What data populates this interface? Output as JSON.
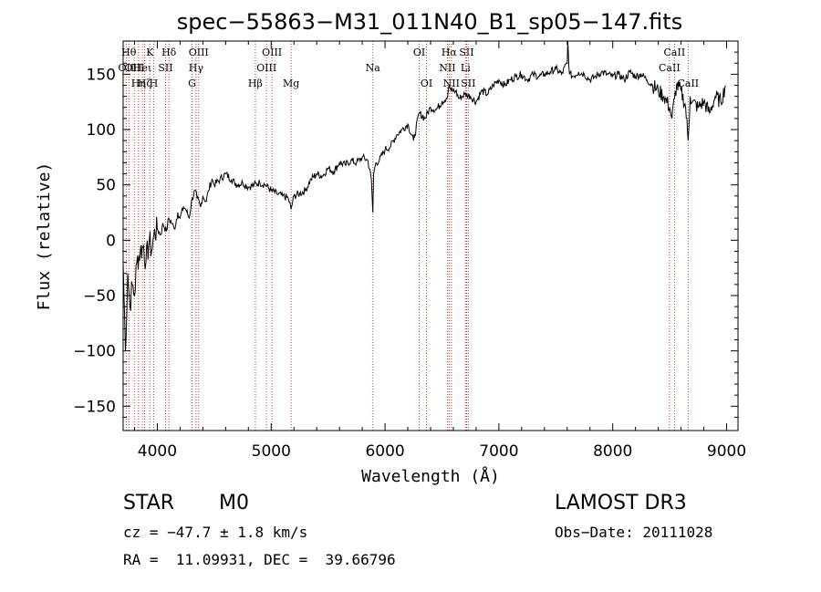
{
  "chart_data": {
    "type": "line",
    "title": "spec−55863−M31_011N40_B1_sp05−147.fits",
    "xlabel": "Wavelength (Å)",
    "ylabel": "Flux (relative)",
    "xlim": [
      3700,
      9100
    ],
    "ylim": [
      -172,
      180
    ],
    "x_ticks": [
      4000,
      5000,
      6000,
      7000,
      8000,
      9000
    ],
    "x_tick_labels": [
      "4000",
      "5000",
      "6000",
      "7000",
      "8000",
      "9000"
    ],
    "y_ticks": [
      -150,
      -100,
      -50,
      0,
      50,
      100,
      150
    ],
    "y_tick_labels": [
      "−150",
      "−100",
      "−50",
      "0",
      "50",
      "100",
      "150"
    ],
    "grid": false,
    "series": [
      {
        "x": [
          3700,
          3720,
          3740,
          3760,
          3780,
          3800,
          3820,
          3850,
          3880,
          3900,
          3930,
          3950,
          3970,
          4000,
          4030,
          4050,
          4080,
          4100,
          4130,
          4150,
          4180,
          4200,
          4230,
          4250,
          4280,
          4300,
          4330,
          4350,
          4380,
          4400,
          4430,
          4450,
          4480,
          4500,
          4550,
          4600,
          4650,
          4700,
          4750,
          4800,
          4850,
          4900,
          4950,
          5000,
          5050,
          5100,
          5150,
          5175,
          5200,
          5250,
          5300,
          5350,
          5400,
          5450,
          5500,
          5550,
          5600,
          5650,
          5700,
          5750,
          5800,
          5850,
          5880,
          5893,
          5900,
          5920,
          5950,
          6000,
          6050,
          6100,
          6150,
          6200,
          6250,
          6300,
          6350,
          6400,
          6450,
          6500,
          6550,
          6563,
          6580,
          6620,
          6650,
          6700,
          6750,
          6800,
          6850,
          6900,
          6950,
          7000,
          7050,
          7100,
          7150,
          7200,
          7250,
          7300,
          7350,
          7400,
          7450,
          7500,
          7550,
          7600,
          7605,
          7620,
          7650,
          7700,
          7750,
          7800,
          7850,
          7900,
          7950,
          8000,
          8050,
          8100,
          8150,
          8200,
          8250,
          8300,
          8350,
          8400,
          8450,
          8500,
          8520,
          8542,
          8560,
          8600,
          8640,
          8662,
          8680,
          8700,
          8750,
          8800,
          8850,
          8900,
          8950,
          8990
        ],
        "y": [
          -20,
          -100,
          -30,
          -60,
          -40,
          -50,
          -20,
          -10,
          -5,
          -20,
          0,
          -10,
          5,
          10,
          5,
          15,
          8,
          20,
          15,
          10,
          25,
          20,
          30,
          28,
          20,
          35,
          45,
          38,
          30,
          40,
          35,
          45,
          55,
          50,
          55,
          60,
          55,
          50,
          52,
          48,
          50,
          52,
          50,
          45,
          42,
          40,
          38,
          28,
          40,
          42,
          45,
          55,
          60,
          58,
          65,
          62,
          70,
          68,
          72,
          70,
          75,
          72,
          55,
          25,
          60,
          70,
          72,
          82,
          85,
          95,
          100,
          105,
          90,
          115,
          110,
          120,
          118,
          125,
          130,
          140,
          135,
          135,
          128,
          132,
          130,
          125,
          135,
          132,
          140,
          145,
          140,
          145,
          148,
          150,
          145,
          150,
          148,
          150,
          152,
          155,
          150,
          160,
          180,
          150,
          148,
          152,
          150,
          145,
          148,
          152,
          150,
          148,
          150,
          145,
          152,
          148,
          150,
          145,
          140,
          135,
          130,
          120,
          110,
          128,
          140,
          135,
          120,
          90,
          130,
          125,
          120,
          125,
          115,
          130,
          125,
          140
        ]
      }
    ],
    "emission_lines": [
      {
        "wave": 3727,
        "label": "OII",
        "row": 2
      },
      {
        "wave": 3750,
        "label": "Hθ",
        "row": 1
      },
      {
        "wave": 3798,
        "label": "OIII",
        "row": 2
      },
      {
        "wave": 3835,
        "label": "Hη",
        "row": 3
      },
      {
        "wave": 3869,
        "label": "Heι",
        "row": 2
      },
      {
        "wave": 3889,
        "label": "Hζ",
        "row": 3
      },
      {
        "wave": 3934,
        "label": "K",
        "row": 1
      },
      {
        "wave": 3968,
        "label": "H",
        "row": 3
      },
      {
        "wave": 4072,
        "label": "SII",
        "row": 2
      },
      {
        "wave": 4102,
        "label": "Hδ",
        "row": 1
      },
      {
        "wave": 4305,
        "label": "G",
        "row": 3
      },
      {
        "wave": 4340,
        "label": "Hγ",
        "row": 2
      },
      {
        "wave": 4363,
        "label": "OIII",
        "row": 1
      },
      {
        "wave": 4861,
        "label": "Hβ",
        "row": 3
      },
      {
        "wave": 4959,
        "label": "OIII",
        "row": 2
      },
      {
        "wave": 5007,
        "label": "OIII",
        "row": 1
      },
      {
        "wave": 5175,
        "label": "Mg",
        "row": 3
      },
      {
        "wave": 5893,
        "label": "Na",
        "row": 2
      },
      {
        "wave": 6300,
        "label": "OI",
        "row": 1
      },
      {
        "wave": 6364,
        "label": "OI",
        "row": 3
      },
      {
        "wave": 6548,
        "label": "NII",
        "row": 2
      },
      {
        "wave": 6563,
        "label": "Hα",
        "row": 1
      },
      {
        "wave": 6583,
        "label": "NII",
        "row": 3
      },
      {
        "wave": 6707,
        "label": "Li",
        "row": 2
      },
      {
        "wave": 6716,
        "label": "SII",
        "row": 1
      },
      {
        "wave": 6731,
        "label": "SII",
        "row": 3
      },
      {
        "wave": 8498,
        "label": "CaII",
        "row": 2
      },
      {
        "wave": 8542,
        "label": "CaII",
        "row": 1
      },
      {
        "wave": 8662,
        "label": "CaII",
        "row": 3
      }
    ]
  },
  "info": {
    "class_label": "STAR",
    "subclass_label": "M0",
    "survey_label": "LAMOST DR3",
    "redshift_text": "cz = −47.7 ± 1.8 km/s",
    "obs_date_text": "Obs−Date: 20111028",
    "coords_text": "RA =  11.09931, DEC =  39.66796"
  }
}
